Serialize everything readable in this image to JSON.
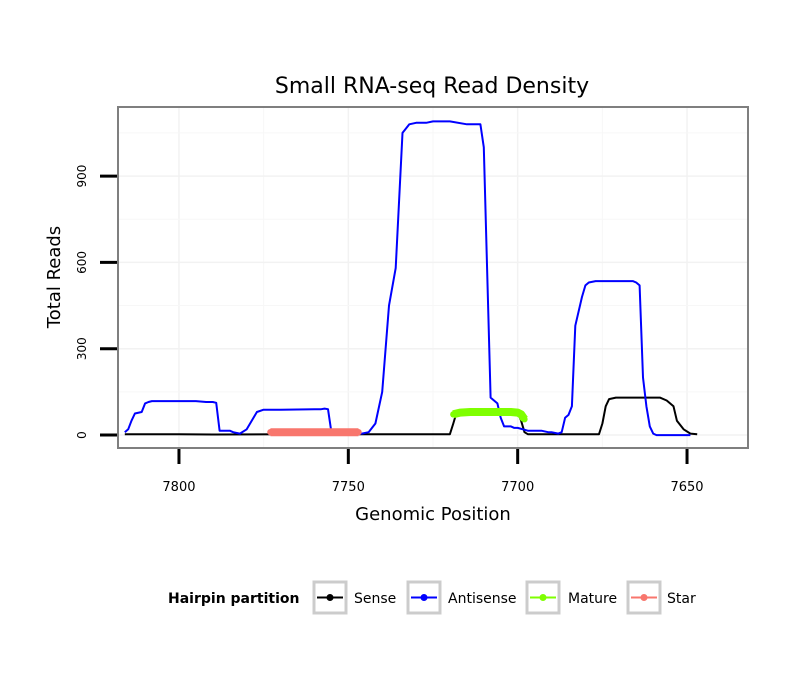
{
  "chart_data": {
    "type": "line",
    "title": "Small RNA-seq Read Density",
    "xlabel": "Genomic Position",
    "ylabel": "Total Reads",
    "xlim": [
      7818,
      7632
    ],
    "x_reversed": true,
    "ylim": [
      -45,
      1140
    ],
    "grid": true,
    "x_ticks": [
      7800,
      7750,
      7700,
      7650
    ],
    "x_tick_labels": [
      "7800",
      "7750",
      "7700",
      "7650"
    ],
    "y_ticks": [
      0,
      300,
      600,
      900
    ],
    "y_tick_labels": [
      "0",
      "300",
      "600",
      "900"
    ],
    "legend": {
      "title": "Hairpin partition",
      "position": "bottom",
      "entries": [
        "Sense",
        "Antisense",
        "Mature",
        "Star"
      ]
    },
    "series": [
      {
        "name": "Sense",
        "color": "#000000",
        "kind": "line",
        "x": [
          7816,
          7800,
          7790,
          7770,
          7750,
          7740,
          7720,
          7719,
          7718,
          7700,
          7699,
          7698,
          7697,
          7676,
          7675,
          7674,
          7673,
          7671,
          7658,
          7656,
          7654,
          7653,
          7651,
          7649,
          7647
        ],
        "y": [
          3,
          3,
          2,
          3,
          3,
          3,
          3,
          40,
          80,
          80,
          50,
          10,
          3,
          3,
          40,
          100,
          125,
          130,
          130,
          120,
          100,
          50,
          20,
          5,
          3
        ]
      },
      {
        "name": "Antisense",
        "color": "#0000ff",
        "kind": "line",
        "x": [
          7816,
          7815,
          7814,
          7813,
          7811,
          7810,
          7809,
          7808,
          7805,
          7795,
          7792,
          7790,
          7789,
          7788,
          7787,
          7785,
          7784,
          7782,
          7780,
          7778,
          7777,
          7775,
          7772,
          7770,
          7760,
          7758,
          7757,
          7756,
          7755,
          7754,
          7752,
          7750,
          7749,
          7746,
          7744,
          7742,
          7740,
          7738,
          7736,
          7734,
          7732,
          7730,
          7728,
          7727,
          7725,
          7720,
          7715,
          7711,
          7710,
          7708,
          7706,
          7705,
          7704,
          7703,
          7702,
          7701,
          7700,
          7697,
          7695,
          7693,
          7691,
          7690,
          7688,
          7687,
          7686,
          7685,
          7684,
          7683,
          7681,
          7680,
          7679,
          7677,
          7666,
          7665,
          7664,
          7663,
          7662,
          7661,
          7660,
          7659,
          7658,
          7650,
          7649
        ],
        "y": [
          10,
          20,
          50,
          75,
          80,
          110,
          115,
          118,
          118,
          118,
          115,
          115,
          112,
          15,
          15,
          15,
          10,
          5,
          20,
          60,
          80,
          88,
          88,
          88,
          90,
          90,
          92,
          90,
          10,
          5,
          5,
          5,
          5,
          5,
          10,
          40,
          150,
          450,
          580,
          1050,
          1080,
          1085,
          1085,
          1085,
          1090,
          1090,
          1080,
          1080,
          1000,
          130,
          110,
          60,
          30,
          30,
          30,
          25,
          25,
          15,
          15,
          15,
          10,
          10,
          5,
          10,
          60,
          70,
          100,
          380,
          480,
          520,
          530,
          535,
          535,
          530,
          520,
          200,
          100,
          30,
          5,
          0,
          0,
          0,
          0
        ]
      },
      {
        "name": "Mature",
        "color": "#7fff00",
        "kind": "band",
        "x": [
          7719,
          7717,
          7714,
          7711,
          7708,
          7705,
          7702,
          7700,
          7699,
          7698
        ],
        "y": [
          72,
          78,
          80,
          80,
          80,
          80,
          80,
          78,
          72,
          55
        ]
      },
      {
        "name": "Star",
        "color": "#f8766d",
        "kind": "band",
        "x": [
          7773,
          7764,
          7756,
          7750,
          7747
        ],
        "y": [
          10,
          10,
          10,
          10,
          10
        ]
      }
    ]
  }
}
